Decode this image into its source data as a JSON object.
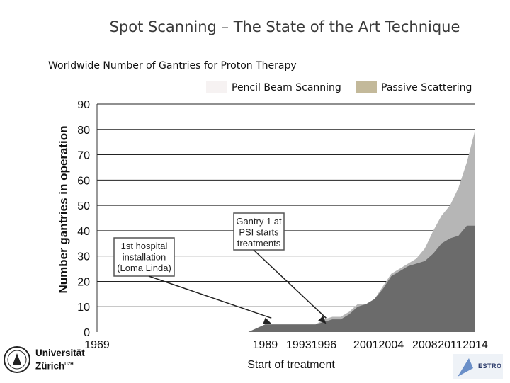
{
  "title": "Spot Scanning – The State of the Art Technique",
  "subtitle": "Worldwide Number of Gantries for Proton Therapy",
  "logos": {
    "uzh": "Universität Zürich",
    "estro": "ESTRO"
  },
  "chart_data": {
    "type": "area",
    "stacked": true,
    "xlabel": "Start of treatment",
    "ylabel": "Number gantries in operation",
    "xlim": [
      1969,
      2014
    ],
    "ylim": [
      0,
      90
    ],
    "x_ticks": [
      "1969",
      "1989",
      "1993",
      "1996",
      "2001",
      "2004",
      "2008",
      "2011",
      "2014"
    ],
    "y_ticks": [
      "0",
      "10",
      "20",
      "30",
      "40",
      "50",
      "60",
      "70",
      "80",
      "90"
    ],
    "grid": "horizontal",
    "legend_position": "top",
    "x": [
      1969,
      1987,
      1989,
      1994,
      1995,
      1996,
      1997,
      1998,
      1999,
      2000,
      2001,
      2002,
      2003,
      2004,
      2005,
      2006,
      2007,
      2008,
      2009,
      2010,
      2011,
      2012,
      2013,
      2014
    ],
    "series": [
      {
        "name": "Passive Scattering",
        "color": "#6b6b6b",
        "values": [
          0,
          0,
          3,
          3,
          3,
          4,
          5,
          5,
          7,
          10,
          11,
          13,
          17,
          22,
          24,
          26,
          27,
          28,
          31,
          35,
          37,
          38,
          42,
          42
        ]
      },
      {
        "name": "Pencil Beam Scanning",
        "color": "#b6b6b6",
        "values": [
          0,
          0,
          0,
          0,
          0,
          1,
          1,
          1,
          1,
          1,
          0,
          0,
          1,
          1,
          1,
          1,
          2,
          5,
          9,
          11,
          13,
          19,
          25,
          38
        ]
      }
    ],
    "annotations": [
      {
        "text": "1st hospital installation (Loma Linda)",
        "x": 1990
      },
      {
        "text": "Gantry 1 at PSI starts treatments",
        "x": 1996
      }
    ]
  }
}
